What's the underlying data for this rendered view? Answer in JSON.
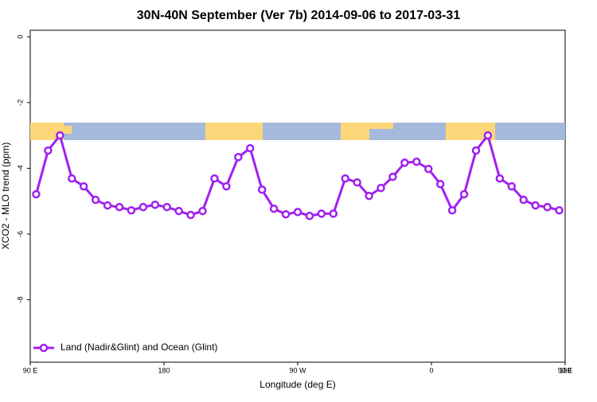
{
  "chart_data": {
    "type": "line",
    "title": "30N-40N September (Ver 7b)   2014-09-06 to 2017-03-31",
    "x_label": "Longitude (deg E)",
    "y_label": "XCO2 - MLO trend (ppm)",
    "x": [
      94,
      102,
      110,
      118,
      126,
      134,
      142,
      150,
      158,
      166,
      174,
      182,
      190,
      198,
      206,
      214,
      222,
      230,
      238,
      246,
      254,
      262,
      270,
      278,
      286,
      294,
      302,
      310,
      318,
      326,
      334,
      342,
      350,
      358,
      366,
      374,
      382,
      390,
      398,
      406,
      414,
      422,
      430,
      438,
      446
    ],
    "series": [
      {
        "name": "Land (Nadir&Glint) and Ocean (Glint)",
        "color": "#a020f0",
        "values": [
          -4.79,
          -3.46,
          -3.0,
          -4.31,
          -4.55,
          -4.96,
          -5.13,
          -5.18,
          -5.28,
          -5.18,
          -5.11,
          -5.18,
          -5.3,
          -5.42,
          -5.3,
          -4.31,
          -4.55,
          -3.66,
          -3.39,
          -4.65,
          -5.23,
          -5.4,
          -5.33,
          -5.45,
          -5.38,
          -5.38,
          -4.31,
          -4.43,
          -4.84,
          -4.6,
          -4.26,
          -3.83,
          -3.8,
          -4.02,
          -4.48,
          -5.28,
          -4.79,
          -3.46,
          -3.0,
          -4.31,
          -4.55,
          -4.96,
          -5.13,
          -5.18,
          -5.28
        ]
      }
    ],
    "xlim": [
      90,
      450
    ],
    "xticks": [
      {
        "value": 90,
        "label": "90 E"
      },
      180,
      {
        "value": 270,
        "label": "90 W"
      },
      {
        "value": 360,
        "label": "0"
      },
      {
        "value": 450,
        "label": "90 E"
      },
      {
        "value": 540,
        "label": "180"
      }
    ],
    "ylim": [
      -9.9,
      0.2
    ],
    "yticks": [
      0,
      -2,
      -4,
      -6,
      -8
    ],
    "legend": "bottom-left"
  }
}
